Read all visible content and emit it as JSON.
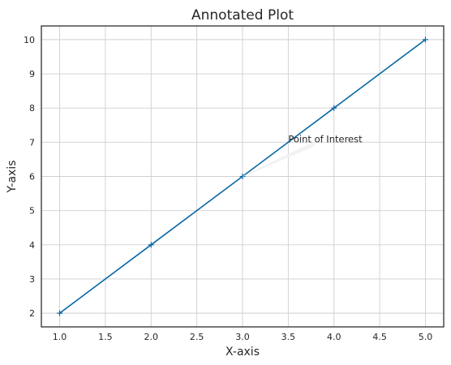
{
  "chart_data": {
    "type": "line",
    "title": "Annotated Plot",
    "xlabel": "X-axis",
    "ylabel": "Y-axis",
    "xlim": [
      0.8,
      5.2
    ],
    "ylim": [
      1.6,
      10.4
    ],
    "xticks": [
      1.0,
      1.5,
      2.0,
      2.5,
      3.0,
      3.5,
      4.0,
      4.5,
      5.0
    ],
    "xtick_labels": [
      "1.0",
      "1.5",
      "2.0",
      "2.5",
      "3.0",
      "3.5",
      "4.0",
      "4.5",
      "5.0"
    ],
    "yticks": [
      2,
      3,
      4,
      5,
      6,
      7,
      8,
      9,
      10
    ],
    "ytick_labels": [
      "2",
      "3",
      "4",
      "5",
      "6",
      "7",
      "8",
      "9",
      "10"
    ],
    "grid": true,
    "series": [
      {
        "x": [
          1,
          2,
          3,
          4,
          5
        ],
        "y": [
          2,
          4,
          6,
          8,
          10
        ],
        "color": "#0868a6",
        "marker": "plus"
      }
    ],
    "annotations": [
      {
        "text": "Point of Interest",
        "xy": [
          3,
          6
        ],
        "xytext": [
          3.5,
          7
        ]
      }
    ]
  }
}
